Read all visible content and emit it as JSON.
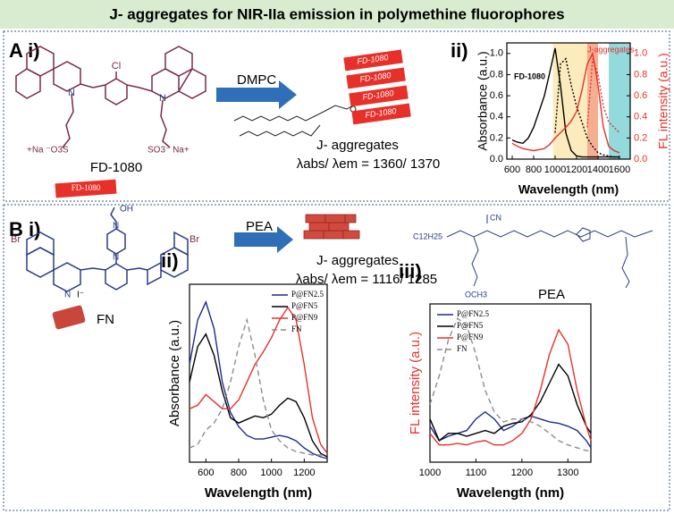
{
  "title": "J- aggregates for NIR-IIa emission in polymethine fluorophores",
  "panel_a": {
    "label": "A i)",
    "sub_label": "ii)",
    "reagent": "DMPC",
    "molecule_name": "FD-1080",
    "sticker": "FD-1080",
    "stack_labels": [
      "FD-1080",
      "FD-1080",
      "FD-1080",
      "FD-1080"
    ],
    "product": "J- aggregates",
    "lambda": "λabs/ λem = 1360/ 1370",
    "atoms": [
      "Cl",
      "N",
      "N",
      "+Na ⁻O3S",
      "SO3⁻ Na+"
    ]
  },
  "panel_b": {
    "label": "B i)",
    "sub_labels": [
      "ii)",
      "iii)"
    ],
    "reagent": "PEA",
    "molecule_name": "FN",
    "product": "J- aggregates",
    "lambda": "λabs/ λem = 1116/ 1285",
    "polymer_name": "PEA",
    "atoms": [
      "OH",
      "N",
      "N",
      "Br",
      "Br",
      "N",
      "I⁻",
      "C12H25",
      "CN",
      "OCH3"
    ]
  },
  "chart_data": [
    {
      "type": "line",
      "x_label": "Wavelength (nm)",
      "y_label": "Absorbance (a.u.)",
      "y2_label": "FL intensity (a.u.)",
      "x": [
        600,
        650,
        700,
        750,
        800,
        850,
        900,
        950,
        1000,
        1050,
        1100,
        1150,
        1200,
        1250,
        1300,
        1350,
        1400,
        1450,
        1500,
        1550,
        1600
      ],
      "xlim": [
        550,
        1700
      ],
      "xticks": [
        600,
        800,
        1000,
        1200,
        1400,
        1600
      ],
      "ylim": [
        0,
        1.1
      ],
      "yticks": [
        {
          "value": 0,
          "label": "0.0"
        },
        {
          "value": 0.2,
          "label": "0.2"
        },
        {
          "value": 0.4,
          "label": "0.4"
        },
        {
          "value": 0.6,
          "label": "0.6"
        },
        {
          "value": 0.8,
          "label": "0.8"
        },
        {
          "value": 1,
          "label": "1.0"
        }
      ],
      "y2lim": [
        0,
        1.1
      ],
      "y2ticks": [
        {
          "value": 0,
          "label": "0.0"
        },
        {
          "value": 0.2,
          "label": "0.2"
        },
        {
          "value": 0.4,
          "label": "0.4"
        },
        {
          "value": 0.6,
          "label": "0.6"
        },
        {
          "value": 0.8,
          "label": "0.8"
        },
        {
          "value": 1,
          "label": "1.0"
        }
      ],
      "spans": [
        {
          "x": [
            980,
            1300
          ],
          "color": "#fbe7b0"
        },
        {
          "x": [
            1300,
            1400
          ],
          "color": "#f4a07e"
        },
        {
          "x": [
            1500,
            1700
          ],
          "color": "#7fd3d6"
        }
      ],
      "series": [
        {
          "name": "FD-1080",
          "color": "#000000",
          "style": "solid",
          "values": [
            0.18,
            0.16,
            0.15,
            0.2,
            0.3,
            0.45,
            0.6,
            0.82,
            1.05,
            0.7,
            0.25,
            0.08,
            0.03,
            0.02,
            0.02,
            0.02,
            0.02,
            0.02,
            0.02,
            0.02,
            0.02
          ]
        },
        {
          "color": "#000000",
          "style": "dotted",
          "values": [
            null,
            null,
            null,
            null,
            null,
            null,
            null,
            null,
            0.25,
            0.9,
            0.95,
            0.7,
            0.5,
            0.35,
            0.2,
            0.12,
            0.06,
            0.04,
            0.03,
            0.02,
            0.02
          ]
        },
        {
          "name": "J-aggregates",
          "color": "#e8302a",
          "style": "solid",
          "axis": "y2",
          "values": [
            0.15,
            0.12,
            0.1,
            0.09,
            0.08,
            0.09,
            0.1,
            0.14,
            0.2,
            0.25,
            0.3,
            0.36,
            0.45,
            0.65,
            0.9,
            1.0,
            0.7,
            0.3,
            0.12,
            0.08,
            0.06
          ]
        },
        {
          "color": "#e8302a",
          "style": "dotted",
          "axis": "y2",
          "values": [
            null,
            null,
            null,
            null,
            null,
            null,
            null,
            null,
            null,
            null,
            null,
            null,
            null,
            null,
            0.3,
            0.95,
            0.8,
            0.5,
            0.35,
            0.3,
            0.25
          ]
        }
      ]
    },
    {
      "type": "line",
      "x_label": "Wavelength (nm)",
      "y_label": "Absorbance (a.u.)",
      "legend": "upper right",
      "x": [
        500,
        550,
        600,
        650,
        700,
        750,
        800,
        850,
        900,
        950,
        1000,
        1050,
        1100,
        1150,
        1200,
        1250,
        1300,
        1340
      ],
      "xlim": [
        500,
        1340
      ],
      "xticks": [
        600,
        800,
        1000,
        1200
      ],
      "ylim": [
        0,
        1
      ],
      "series": [
        {
          "name": "P@FN2.5",
          "color": "#1f2a8c",
          "style": "solid",
          "values": [
            0.55,
            0.8,
            0.9,
            0.75,
            0.45,
            0.28,
            0.2,
            0.15,
            0.13,
            0.13,
            0.14,
            0.15,
            0.14,
            0.12,
            0.08,
            0.05,
            0.03,
            0.02
          ]
        },
        {
          "name": "P@FN5",
          "color": "#000000",
          "style": "solid",
          "values": [
            0.45,
            0.65,
            0.72,
            0.6,
            0.4,
            0.25,
            0.22,
            0.24,
            0.26,
            0.25,
            0.27,
            0.32,
            0.36,
            0.34,
            0.25,
            0.12,
            0.05,
            0.03
          ]
        },
        {
          "name": "P@FN9",
          "color": "#e8302a",
          "style": "solid",
          "values": [
            0.3,
            0.32,
            0.38,
            0.34,
            0.3,
            0.3,
            0.35,
            0.45,
            0.55,
            0.62,
            0.7,
            0.8,
            0.87,
            0.8,
            0.55,
            0.25,
            0.1,
            0.05
          ]
        },
        {
          "name": "FN",
          "color": "#8c8c8c",
          "style": "dashed",
          "values": [
            0.08,
            0.1,
            0.18,
            0.22,
            0.3,
            0.45,
            0.65,
            0.8,
            0.6,
            0.35,
            0.18,
            0.12,
            0.08,
            0.06,
            0.05,
            0.04,
            0.04,
            0.04
          ]
        }
      ]
    },
    {
      "type": "line",
      "x_label": "Wavelength (nm)",
      "y_label": "FL intensity (a.u.)",
      "legend": "upper left",
      "x": [
        1000,
        1020,
        1040,
        1060,
        1080,
        1100,
        1120,
        1140,
        1160,
        1180,
        1200,
        1220,
        1240,
        1260,
        1280,
        1300,
        1320,
        1340,
        1350
      ],
      "xlim": [
        1000,
        1350
      ],
      "xticks": [
        1000,
        1100,
        1200,
        1300
      ],
      "ylim": [
        0,
        1.1
      ],
      "series": [
        {
          "name": "P@FN2.5",
          "color": "#1f2a8c",
          "style": "solid",
          "values": [
            0.25,
            0.15,
            0.18,
            0.2,
            0.22,
            0.3,
            0.35,
            0.3,
            0.22,
            0.25,
            0.3,
            0.32,
            0.3,
            0.28,
            0.27,
            0.25,
            0.22,
            0.15,
            0.1
          ]
        },
        {
          "name": "P@FN5",
          "color": "#000000",
          "style": "solid",
          "values": [
            0.3,
            0.15,
            0.2,
            0.2,
            0.18,
            0.2,
            0.22,
            0.2,
            0.25,
            0.27,
            0.28,
            0.33,
            0.42,
            0.55,
            0.68,
            0.6,
            0.4,
            0.25,
            0.2
          ]
        },
        {
          "name": "P@FN9",
          "color": "#e8302a",
          "style": "solid",
          "values": [
            0.2,
            0.12,
            0.12,
            0.13,
            0.12,
            0.14,
            0.15,
            0.12,
            0.12,
            0.15,
            0.2,
            0.3,
            0.5,
            0.75,
            0.92,
            0.82,
            0.5,
            0.25,
            0.15
          ]
        },
        {
          "name": "FN",
          "color": "#8c8c8c",
          "style": "dashed",
          "values": [
            0.4,
            0.6,
            0.85,
            1.0,
            0.95,
            0.75,
            0.5,
            0.35,
            0.28,
            0.3,
            0.3,
            0.28,
            0.25,
            0.2,
            0.15,
            0.12,
            0.1,
            0.08,
            0.08
          ]
        }
      ]
    }
  ]
}
